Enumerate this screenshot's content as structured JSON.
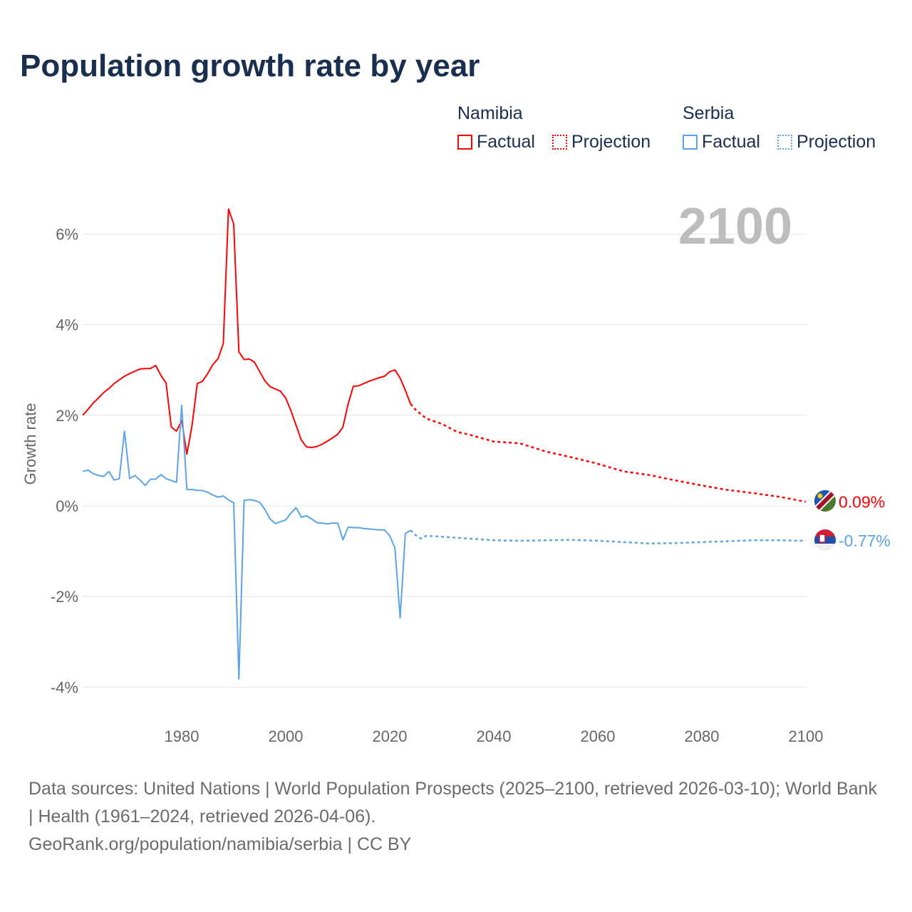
{
  "title": "Population growth rate by year",
  "legend": {
    "groups": [
      {
        "name": "Namibia",
        "factual": "Factual",
        "projection": "Projection",
        "color": "#ff0000"
      },
      {
        "name": "Serbia",
        "factual": "Factual",
        "projection": "Projection",
        "color": "#5ba3ea"
      }
    ]
  },
  "year_label": "2100",
  "footer": {
    "sources": "Data sources: United Nations | World Population Prospects (2025–2100, retrieved 2026-03-10); World Bank | Health (1961–2024, retrieved 2026-04-06).",
    "credit": "GeoRank.org/population/namibia/serbia | CC BY"
  },
  "chart_data": {
    "type": "line",
    "title": "Population growth rate by year",
    "xlabel": "",
    "ylabel": "Growth rate",
    "xlim": [
      1961,
      2100
    ],
    "ylim": [
      -4.7,
      6.8
    ],
    "xticks": [
      1980,
      2000,
      2020,
      2040,
      2060,
      2080,
      2100
    ],
    "xtick_labels": [
      "1980",
      "2000",
      "2020",
      "2040",
      "2060",
      "2080",
      "2100"
    ],
    "yticks": [
      6,
      4,
      2,
      0,
      -2,
      -4
    ],
    "ytick_labels": [
      "6%",
      "4%",
      "2%",
      "0%",
      "-2%",
      "-4%"
    ],
    "grid": true,
    "legend_position": "top-right",
    "series": [
      {
        "name": "Namibia",
        "color": "#ff0000",
        "end_label": "0.09%",
        "factual": {
          "x": [
            1961,
            1962,
            1963,
            1964,
            1965,
            1966,
            1967,
            1968,
            1969,
            1970,
            1971,
            1972,
            1973,
            1974,
            1975,
            1976,
            1977,
            1978,
            1979,
            1980,
            1981,
            1982,
            1983,
            1984,
            1985,
            1986,
            1987,
            1988,
            1989,
            1990,
            1991,
            1992,
            1993,
            1994,
            1995,
            1996,
            1997,
            1998,
            1999,
            2000,
            2001,
            2002,
            2003,
            2004,
            2005,
            2006,
            2007,
            2008,
            2009,
            2010,
            2011,
            2012,
            2013,
            2014,
            2015,
            2016,
            2017,
            2018,
            2019,
            2020,
            2021,
            2022,
            2023,
            2024
          ],
          "y": [
            2.0,
            2.13,
            2.27,
            2.38,
            2.5,
            2.59,
            2.7,
            2.78,
            2.86,
            2.92,
            2.97,
            3.02,
            3.03,
            3.03,
            3.1,
            2.88,
            2.71,
            1.74,
            1.65,
            1.88,
            1.14,
            1.78,
            2.7,
            2.75,
            2.92,
            3.12,
            3.25,
            3.58,
            6.55,
            6.22,
            3.4,
            3.23,
            3.24,
            3.17,
            2.96,
            2.76,
            2.63,
            2.58,
            2.53,
            2.38,
            2.1,
            1.78,
            1.45,
            1.3,
            1.29,
            1.31,
            1.36,
            1.43,
            1.5,
            1.58,
            1.74,
            2.25,
            2.64,
            2.65,
            2.7,
            2.75,
            2.79,
            2.83,
            2.86,
            2.96,
            3.0,
            2.82,
            2.55,
            2.25
          ]
        },
        "projection": {
          "x": [
            2024,
            2025,
            2027,
            2030,
            2033,
            2035,
            2040,
            2045,
            2050,
            2055,
            2060,
            2065,
            2070,
            2075,
            2080,
            2085,
            2090,
            2095,
            2100
          ],
          "y": [
            2.25,
            2.12,
            1.93,
            1.81,
            1.63,
            1.58,
            1.42,
            1.38,
            1.2,
            1.07,
            0.93,
            0.76,
            0.68,
            0.56,
            0.45,
            0.35,
            0.28,
            0.2,
            0.09
          ]
        }
      },
      {
        "name": "Serbia",
        "color": "#5ba3ea",
        "end_label": "-0.77%",
        "factual": {
          "x": [
            1961,
            1962,
            1963,
            1964,
            1965,
            1966,
            1967,
            1968,
            1969,
            1970,
            1971,
            1972,
            1973,
            1974,
            1975,
            1976,
            1977,
            1978,
            1979,
            1980,
            1981,
            1982,
            1983,
            1984,
            1985,
            1986,
            1987,
            1988,
            1989,
            1990,
            1991,
            1992,
            1993,
            1994,
            1995,
            1996,
            1997,
            1998,
            1999,
            2000,
            2001,
            2002,
            2003,
            2004,
            2005,
            2006,
            2007,
            2008,
            2009,
            2010,
            2011,
            2012,
            2013,
            2014,
            2015,
            2016,
            2017,
            2018,
            2019,
            2020,
            2021,
            2022,
            2023,
            2024
          ],
          "y": [
            0.76,
            0.79,
            0.71,
            0.67,
            0.65,
            0.76,
            0.57,
            0.6,
            1.65,
            0.6,
            0.67,
            0.57,
            0.45,
            0.59,
            0.59,
            0.69,
            0.6,
            0.56,
            0.52,
            2.22,
            0.36,
            0.36,
            0.34,
            0.34,
            0.3,
            0.24,
            0.19,
            0.22,
            0.13,
            0.07,
            -3.82,
            0.12,
            0.14,
            0.12,
            0.08,
            -0.08,
            -0.29,
            -0.39,
            -0.35,
            -0.31,
            -0.16,
            -0.04,
            -0.25,
            -0.22,
            -0.29,
            -0.37,
            -0.38,
            -0.4,
            -0.38,
            -0.38,
            -0.75,
            -0.47,
            -0.48,
            -0.48,
            -0.5,
            -0.51,
            -0.52,
            -0.53,
            -0.53,
            -0.66,
            -0.93,
            -2.47,
            -0.61,
            -0.54
          ]
        },
        "projection": {
          "x": [
            2024,
            2025,
            2026,
            2027,
            2030,
            2035,
            2040,
            2045,
            2050,
            2055,
            2060,
            2065,
            2070,
            2075,
            2080,
            2085,
            2090,
            2095,
            2100
          ],
          "y": [
            -0.54,
            -0.65,
            -0.72,
            -0.66,
            -0.68,
            -0.72,
            -0.76,
            -0.77,
            -0.76,
            -0.75,
            -0.77,
            -0.8,
            -0.83,
            -0.82,
            -0.8,
            -0.78,
            -0.76,
            -0.76,
            -0.77
          ]
        }
      }
    ]
  }
}
